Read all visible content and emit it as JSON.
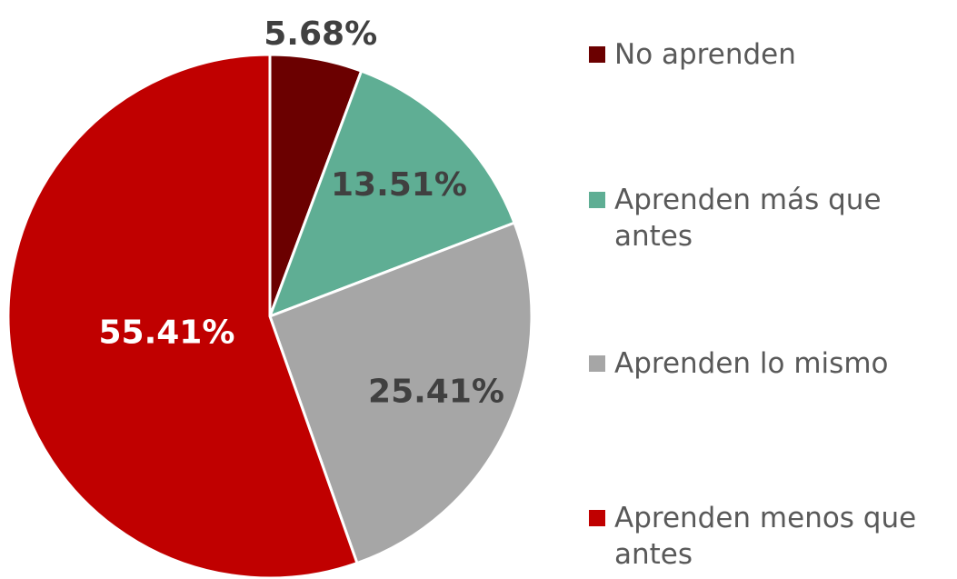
{
  "chart_data": {
    "type": "pie",
    "categories": [
      "No aprenden",
      "Aprenden más que antes",
      "Aprenden lo mismo",
      "Aprenden menos que antes"
    ],
    "values": [
      5.68,
      13.51,
      25.41,
      55.41
    ],
    "value_labels": [
      "5.68%",
      "13.51%",
      "25.41%",
      "55.41%"
    ],
    "colors": [
      "#6b0000",
      "#5fae94",
      "#a6a6a6",
      "#c00000"
    ],
    "legend": "right"
  }
}
